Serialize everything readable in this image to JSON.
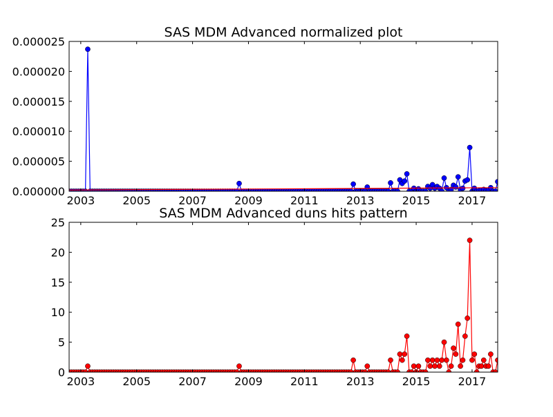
{
  "chart_data": [
    {
      "type": "line",
      "title": "SAS MDM Advanced normalized plot",
      "xlabel": "",
      "ylabel": "",
      "x_axis": "date",
      "xlim": [
        "2002-08-01",
        "2017-12-01"
      ],
      "ylim": [
        0,
        2.5e-05
      ],
      "xticks": [
        {
          "date": "2003-01-01",
          "label": "2003"
        },
        {
          "date": "2005-01-01",
          "label": "2005"
        },
        {
          "date": "2007-01-01",
          "label": "2007"
        },
        {
          "date": "2009-01-01",
          "label": "2009"
        },
        {
          "date": "2011-01-01",
          "label": "2011"
        },
        {
          "date": "2013-01-01",
          "label": "2013"
        },
        {
          "date": "2015-01-01",
          "label": "2015"
        },
        {
          "date": "2017-01-01",
          "label": "2017"
        }
      ],
      "yticks": [
        {
          "value": 0,
          "label": "0.000000"
        },
        {
          "value": 5e-06,
          "label": "0.000005"
        },
        {
          "value": 1e-05,
          "label": "0.000010"
        },
        {
          "value": 1.5e-05,
          "label": "0.000015"
        },
        {
          "value": 2e-05,
          "label": "0.000020"
        },
        {
          "value": 2.5e-05,
          "label": "0.000025"
        }
      ],
      "grid": false,
      "series": [
        {
          "color": "#0000ff",
          "marker": "circle",
          "baseline": 0,
          "points": [
            {
              "date": "2003-04-01",
              "value": 2.37e-05
            },
            {
              "date": "2008-09-01",
              "value": 1.3e-06
            },
            {
              "date": "2012-10-01",
              "value": 1.2e-06
            },
            {
              "date": "2013-04-01",
              "value": 7e-07
            },
            {
              "date": "2014-02-01",
              "value": 1.4e-06
            },
            {
              "date": "2014-06-01",
              "value": 1.9e-06
            },
            {
              "date": "2014-07-01",
              "value": 1.3e-06
            },
            {
              "date": "2014-08-01",
              "value": 1.7e-06
            },
            {
              "date": "2014-09-01",
              "value": 2.9e-06
            },
            {
              "date": "2014-12-01",
              "value": 5e-07
            },
            {
              "date": "2015-02-01",
              "value": 4e-07
            },
            {
              "date": "2015-06-01",
              "value": 8e-07
            },
            {
              "date": "2015-07-01",
              "value": 5e-07
            },
            {
              "date": "2015-08-01",
              "value": 1.1e-06
            },
            {
              "date": "2015-09-01",
              "value": 5e-07
            },
            {
              "date": "2015-10-01",
              "value": 8e-07
            },
            {
              "date": "2015-11-01",
              "value": 5e-07
            },
            {
              "date": "2016-01-01",
              "value": 2.2e-06
            },
            {
              "date": "2016-02-01",
              "value": 6e-07
            },
            {
              "date": "2016-04-01",
              "value": 3e-07
            },
            {
              "date": "2016-05-01",
              "value": 1e-06
            },
            {
              "date": "2016-06-01",
              "value": 7e-07
            },
            {
              "date": "2016-07-01",
              "value": 2.4e-06
            },
            {
              "date": "2016-08-01",
              "value": 3e-07
            },
            {
              "date": "2016-09-01",
              "value": 5e-07
            },
            {
              "date": "2016-10-01",
              "value": 1.7e-06
            },
            {
              "date": "2016-11-01",
              "value": 1.9e-06
            },
            {
              "date": "2016-12-01",
              "value": 7.3e-06
            },
            {
              "date": "2017-02-01",
              "value": 5e-07
            },
            {
              "date": "2017-04-01",
              "value": 1e-07
            },
            {
              "date": "2017-05-01",
              "value": 2e-07
            },
            {
              "date": "2017-06-01",
              "value": 3e-07
            },
            {
              "date": "2017-07-01",
              "value": 1e-07
            },
            {
              "date": "2017-08-01",
              "value": 2e-07
            },
            {
              "date": "2017-09-01",
              "value": 6e-07
            },
            {
              "date": "2017-12-01",
              "value": 1.6e-06
            }
          ]
        },
        {
          "color": "#ff0000",
          "marker": "none",
          "points": [
            {
              "date": "2002-08-01",
              "value": 2e-07
            },
            {
              "date": "2017-12-01",
              "value": 6e-07
            }
          ]
        }
      ]
    },
    {
      "type": "line",
      "title": "SAS MDM Advanced duns hits pattern",
      "xlabel": "",
      "ylabel": "",
      "x_axis": "date",
      "xlim": [
        "2002-08-01",
        "2017-12-01"
      ],
      "ylim": [
        0,
        25
      ],
      "xticks": [
        {
          "date": "2003-01-01",
          "label": "2003"
        },
        {
          "date": "2005-01-01",
          "label": "2005"
        },
        {
          "date": "2007-01-01",
          "label": "2007"
        },
        {
          "date": "2009-01-01",
          "label": "2009"
        },
        {
          "date": "2011-01-01",
          "label": "2011"
        },
        {
          "date": "2013-01-01",
          "label": "2013"
        },
        {
          "date": "2015-01-01",
          "label": "2015"
        },
        {
          "date": "2017-01-01",
          "label": "2017"
        }
      ],
      "yticks": [
        {
          "value": 0,
          "label": "0"
        },
        {
          "value": 5,
          "label": "5"
        },
        {
          "value": 10,
          "label": "10"
        },
        {
          "value": 15,
          "label": "15"
        },
        {
          "value": 20,
          "label": "20"
        },
        {
          "value": 25,
          "label": "25"
        }
      ],
      "grid": false,
      "series": [
        {
          "color": "#ff0000",
          "marker": "circle",
          "baseline": 0,
          "points": [
            {
              "date": "2003-04-01",
              "value": 1
            },
            {
              "date": "2008-09-01",
              "value": 1
            },
            {
              "date": "2012-10-01",
              "value": 2
            },
            {
              "date": "2013-04-01",
              "value": 1
            },
            {
              "date": "2014-02-01",
              "value": 2
            },
            {
              "date": "2014-06-01",
              "value": 3
            },
            {
              "date": "2014-07-01",
              "value": 2
            },
            {
              "date": "2014-08-01",
              "value": 3
            },
            {
              "date": "2014-09-01",
              "value": 6
            },
            {
              "date": "2014-12-01",
              "value": 1
            },
            {
              "date": "2015-02-01",
              "value": 1
            },
            {
              "date": "2015-06-01",
              "value": 2
            },
            {
              "date": "2015-07-01",
              "value": 1
            },
            {
              "date": "2015-08-01",
              "value": 2
            },
            {
              "date": "2015-09-01",
              "value": 1
            },
            {
              "date": "2015-10-01",
              "value": 2
            },
            {
              "date": "2015-11-01",
              "value": 1
            },
            {
              "date": "2015-12-01",
              "value": 2
            },
            {
              "date": "2016-01-01",
              "value": 5
            },
            {
              "date": "2016-02-01",
              "value": 2
            },
            {
              "date": "2016-04-01",
              "value": 1
            },
            {
              "date": "2016-05-01",
              "value": 4
            },
            {
              "date": "2016-06-01",
              "value": 3
            },
            {
              "date": "2016-07-01",
              "value": 8
            },
            {
              "date": "2016-08-01",
              "value": 1
            },
            {
              "date": "2016-09-01",
              "value": 2
            },
            {
              "date": "2016-10-01",
              "value": 6
            },
            {
              "date": "2016-11-01",
              "value": 9
            },
            {
              "date": "2016-12-01",
              "value": 22
            },
            {
              "date": "2017-01-01",
              "value": 2
            },
            {
              "date": "2017-02-01",
              "value": 3
            },
            {
              "date": "2017-04-01",
              "value": 1
            },
            {
              "date": "2017-05-01",
              "value": 1
            },
            {
              "date": "2017-06-01",
              "value": 2
            },
            {
              "date": "2017-07-01",
              "value": 1
            },
            {
              "date": "2017-08-01",
              "value": 1
            },
            {
              "date": "2017-09-01",
              "value": 3
            },
            {
              "date": "2017-12-01",
              "value": 2
            }
          ]
        }
      ]
    }
  ]
}
